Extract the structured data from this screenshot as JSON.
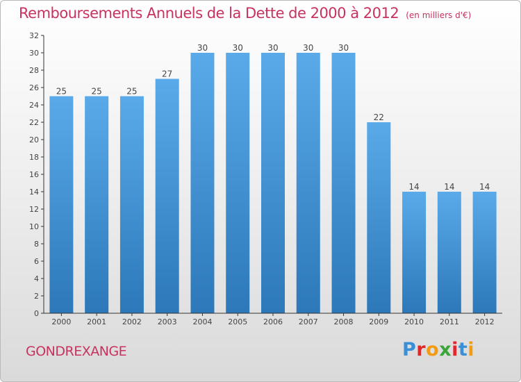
{
  "colors": {
    "title": "#c8325e",
    "bar_top": "#5aaaea",
    "bar_bottom": "#2c78b8",
    "axis": "#333333",
    "grid": "#d0d0d0"
  },
  "header": {
    "title": "Remboursements Annuels de la Dette de 2000 à 2012",
    "unit": "(en milliers d'€)"
  },
  "footer": {
    "commune": "GONDREXANGE",
    "logo": "Proxiti"
  },
  "chart_data": {
    "type": "bar",
    "title": "Remboursements Annuels de la Dette de 2000 à 2012",
    "subtitle": "(en milliers d'€)",
    "xlabel": "",
    "ylabel": "",
    "categories": [
      "2000",
      "2001",
      "2002",
      "2003",
      "2004",
      "2005",
      "2006",
      "2007",
      "2008",
      "2009",
      "2010",
      "2011",
      "2012"
    ],
    "values": [
      25,
      25,
      25,
      27,
      30,
      30,
      30,
      30,
      30,
      22,
      14,
      14,
      14
    ],
    "data_labels": [
      "25",
      "25",
      "25",
      "27",
      "30",
      "30",
      "30",
      "30",
      "30",
      "22",
      "14",
      "14",
      "14"
    ],
    "ylim": [
      0,
      32
    ],
    "yticks": [
      0,
      2,
      4,
      6,
      8,
      10,
      12,
      14,
      16,
      18,
      20,
      22,
      24,
      26,
      28,
      30,
      32
    ],
    "grid": false,
    "legend": "none"
  }
}
